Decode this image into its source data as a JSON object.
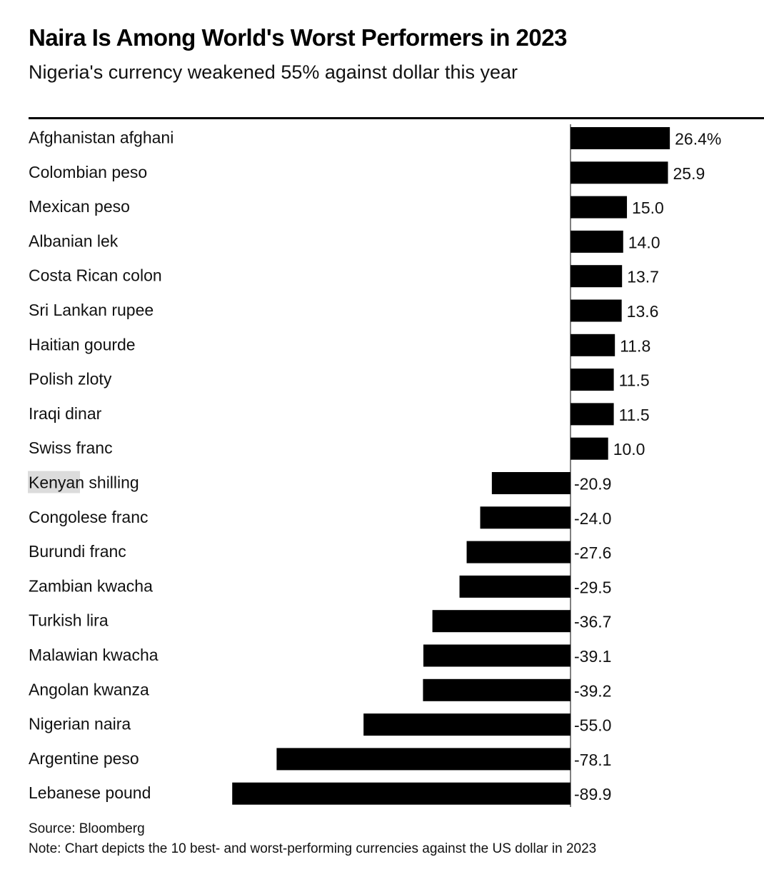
{
  "chart_data": {
    "type": "bar",
    "orientation": "horizontal",
    "title": "Naira Is Among World's Worst Performers in 2023",
    "subtitle": "Nigeria's currency weakened 55% against dollar this year",
    "categories": [
      "Afghanistan afghani",
      "Colombian peso",
      "Mexican peso",
      "Albanian lek",
      "Costa Rican colon",
      "Sri Lankan rupee",
      "Haitian gourde",
      "Polish zloty",
      "Iraqi dinar",
      "Swiss franc",
      "Kenyan shilling",
      "Congolese franc",
      "Burundi franc",
      "Zambian kwacha",
      "Turkish lira",
      "Malawian kwacha",
      "Angolan kwanza",
      "Nigerian naira",
      "Argentine peso",
      "Lebanese pound"
    ],
    "values": [
      26.4,
      25.9,
      15.0,
      14.0,
      13.7,
      13.6,
      11.8,
      11.5,
      11.5,
      10.0,
      -20.9,
      -24.0,
      -27.6,
      -29.5,
      -36.7,
      -39.1,
      -39.2,
      -55.0,
      -78.1,
      -89.9
    ],
    "value_labels": [
      "26.4%",
      "25.9",
      "15.0",
      "14.0",
      "13.7",
      "13.6",
      "11.8",
      "11.5",
      "11.5",
      "10.0",
      "-20.9",
      "-24.0",
      "-27.6",
      "-29.5",
      "-36.7",
      "-39.1",
      "-39.2",
      "-55.0",
      "-78.1",
      "-89.9"
    ],
    "bar_color": "#000000",
    "highlight_color": "#dcdcdc",
    "grid": false,
    "legend": "none",
    "source": "Source: Bloomberg",
    "note": "Note: Chart depicts the 10 best- and worst-performing currencies against the US dollar in 2023"
  }
}
